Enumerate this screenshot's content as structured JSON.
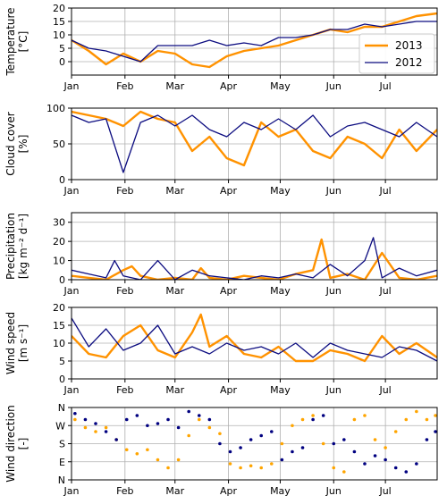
{
  "chart_data": [
    {
      "type": "line",
      "ylabel_lines": [
        "Temperature",
        "[°C]"
      ],
      "ylim": [
        -5,
        20
      ],
      "yticks": [
        0,
        5,
        10,
        15,
        20
      ],
      "xlim": [
        0,
        212
      ],
      "xticks": [
        0,
        31,
        60,
        91,
        121,
        152,
        182
      ],
      "xtick_labels": [
        "Jan",
        "Feb",
        "Mar",
        "Apr",
        "May",
        "Jun",
        "Jul"
      ],
      "grid": true,
      "legend": {
        "placement": "right",
        "entries": [
          "2013",
          "2012"
        ]
      },
      "series": [
        {
          "name": "2013",
          "color": "#ff9200",
          "x": [
            0,
            10,
            20,
            30,
            40,
            50,
            60,
            70,
            80,
            90,
            100,
            110,
            120,
            130,
            140,
            150,
            160,
            170,
            180,
            190,
            200,
            212
          ],
          "y": [
            8,
            4,
            -1,
            3,
            0,
            4,
            3,
            -1,
            -2,
            2,
            4,
            5,
            6,
            8,
            10,
            12,
            11,
            13,
            13,
            15,
            17,
            18
          ]
        },
        {
          "name": "2012",
          "color": "#0c0c80",
          "x": [
            0,
            10,
            20,
            30,
            40,
            50,
            60,
            70,
            80,
            90,
            100,
            110,
            120,
            130,
            140,
            150,
            160,
            170,
            180,
            190,
            200,
            212
          ],
          "y": [
            8,
            5,
            4,
            2,
            0,
            6,
            6,
            6,
            8,
            6,
            7,
            6,
            9,
            9,
            10,
            12,
            12,
            14,
            13,
            14,
            15,
            15
          ]
        }
      ]
    },
    {
      "type": "line",
      "ylabel_lines": [
        "Cloud cover",
        "[%]"
      ],
      "ylim": [
        0,
        100
      ],
      "yticks": [
        0,
        50,
        100
      ],
      "xlim": [
        0,
        212
      ],
      "xticks": [
        0,
        31,
        60,
        91,
        121,
        152,
        182
      ],
      "xtick_labels": [
        "Jan",
        "Feb",
        "Mar",
        "Apr",
        "May",
        "Jun",
        "Jul"
      ],
      "grid": true,
      "series": [
        {
          "name": "2013",
          "color": "#ff9200",
          "x": [
            0,
            10,
            20,
            30,
            40,
            50,
            60,
            70,
            80,
            90,
            100,
            110,
            120,
            130,
            140,
            150,
            160,
            170,
            180,
            190,
            200,
            212
          ],
          "y": [
            95,
            90,
            85,
            75,
            95,
            85,
            80,
            40,
            60,
            30,
            20,
            80,
            60,
            70,
            40,
            30,
            60,
            50,
            30,
            70,
            40,
            70
          ]
        },
        {
          "name": "2012",
          "color": "#0c0c80",
          "x": [
            0,
            10,
            20,
            30,
            40,
            50,
            60,
            70,
            80,
            90,
            100,
            110,
            120,
            130,
            140,
            150,
            160,
            170,
            180,
            190,
            200,
            212
          ],
          "y": [
            90,
            80,
            85,
            10,
            80,
            90,
            75,
            90,
            70,
            60,
            80,
            70,
            85,
            70,
            90,
            60,
            75,
            80,
            70,
            60,
            80,
            60
          ]
        }
      ]
    },
    {
      "type": "line",
      "ylabel_lines": [
        "Precipitation",
        "[kg m⁻² d⁻¹]"
      ],
      "ylim": [
        0,
        35
      ],
      "yticks": [
        0,
        10,
        20,
        30
      ],
      "xlim": [
        0,
        212
      ],
      "xticks": [
        0,
        31,
        60,
        91,
        121,
        152,
        182
      ],
      "xtick_labels": [
        "Jan",
        "Feb",
        "Mar",
        "Apr",
        "May",
        "Jun",
        "Jul"
      ],
      "grid": true,
      "series": [
        {
          "name": "2013",
          "color": "#ff9200",
          "x": [
            0,
            10,
            20,
            30,
            35,
            40,
            50,
            60,
            70,
            75,
            80,
            90,
            100,
            110,
            120,
            130,
            140,
            145,
            150,
            160,
            170,
            180,
            190,
            200,
            212
          ],
          "y": [
            2,
            1,
            0,
            5,
            7,
            2,
            0,
            1,
            0,
            6,
            1,
            0,
            2,
            1,
            0,
            3,
            5,
            21,
            1,
            3,
            0,
            14,
            1,
            0,
            2
          ]
        },
        {
          "name": "2012",
          "color": "#0c0c80",
          "x": [
            0,
            10,
            20,
            25,
            30,
            40,
            50,
            60,
            70,
            80,
            90,
            100,
            110,
            120,
            130,
            140,
            150,
            160,
            170,
            175,
            180,
            190,
            200,
            212
          ],
          "y": [
            5,
            3,
            1,
            10,
            2,
            0,
            10,
            0,
            5,
            2,
            1,
            0,
            2,
            1,
            3,
            1,
            8,
            2,
            10,
            22,
            1,
            6,
            2,
            5
          ]
        }
      ]
    },
    {
      "type": "line",
      "ylabel_lines": [
        "Wind speed",
        "[m s⁻¹]"
      ],
      "ylim": [
        0,
        20
      ],
      "yticks": [
        0,
        5,
        10,
        15,
        20
      ],
      "xlim": [
        0,
        212
      ],
      "xticks": [
        0,
        31,
        60,
        91,
        121,
        152,
        182
      ],
      "xtick_labels": [
        "Jan",
        "Feb",
        "Mar",
        "Apr",
        "May",
        "Jun",
        "Jul"
      ],
      "grid": true,
      "series": [
        {
          "name": "2013",
          "color": "#ff9200",
          "x": [
            0,
            10,
            20,
            30,
            40,
            50,
            60,
            70,
            75,
            80,
            90,
            100,
            110,
            120,
            130,
            140,
            150,
            160,
            170,
            180,
            190,
            200,
            212
          ],
          "y": [
            12,
            7,
            6,
            12,
            15,
            8,
            6,
            13,
            18,
            9,
            12,
            7,
            6,
            9,
            5,
            5,
            8,
            7,
            5,
            12,
            7,
            10,
            6
          ]
        },
        {
          "name": "2012",
          "color": "#0c0c80",
          "x": [
            0,
            10,
            20,
            30,
            40,
            50,
            60,
            70,
            80,
            90,
            100,
            110,
            120,
            130,
            140,
            150,
            160,
            170,
            180,
            190,
            200,
            212
          ],
          "y": [
            17,
            9,
            14,
            8,
            10,
            15,
            7,
            9,
            7,
            10,
            8,
            9,
            7,
            10,
            6,
            10,
            8,
            7,
            6,
            9,
            8,
            5
          ]
        }
      ]
    },
    {
      "type": "scatter",
      "ylabel_lines": [
        "Wind direction",
        "[-]"
      ],
      "ylim": [
        0,
        360
      ],
      "yticks": [
        0,
        90,
        180,
        270,
        360
      ],
      "ytick_labels": [
        "N",
        "E",
        "S",
        "W",
        "N"
      ],
      "xlim": [
        0,
        212
      ],
      "xticks": [
        0,
        31,
        60,
        91,
        121,
        152,
        182
      ],
      "xtick_labels": [
        "Jan",
        "Feb",
        "Mar",
        "Apr",
        "May",
        "Jun",
        "Jul"
      ],
      "grid": true,
      "series": [
        {
          "name": "2013",
          "color": "#ffa500",
          "x": [
            2,
            8,
            14,
            20,
            26,
            32,
            38,
            44,
            50,
            56,
            62,
            68,
            74,
            80,
            86,
            92,
            98,
            104,
            110,
            116,
            122,
            128,
            134,
            140,
            146,
            152,
            158,
            164,
            170,
            176,
            182,
            188,
            194,
            200,
            206,
            211
          ],
          "y": [
            300,
            260,
            240,
            260,
            200,
            150,
            130,
            150,
            100,
            60,
            100,
            220,
            300,
            260,
            230,
            80,
            60,
            70,
            60,
            80,
            180,
            270,
            300,
            320,
            180,
            60,
            40,
            300,
            320,
            200,
            160,
            240,
            300,
            340,
            300,
            320
          ]
        },
        {
          "name": "2012",
          "color": "#000080",
          "x": [
            2,
            8,
            14,
            20,
            26,
            32,
            38,
            44,
            50,
            56,
            62,
            68,
            74,
            80,
            86,
            92,
            98,
            104,
            110,
            116,
            122,
            128,
            134,
            140,
            146,
            152,
            158,
            164,
            170,
            176,
            182,
            188,
            194,
            200,
            206,
            211
          ],
          "y": [
            330,
            300,
            280,
            240,
            200,
            300,
            320,
            270,
            280,
            300,
            260,
            340,
            320,
            300,
            180,
            140,
            160,
            200,
            220,
            240,
            100,
            140,
            160,
            300,
            320,
            180,
            200,
            140,
            80,
            120,
            100,
            60,
            40,
            80,
            200,
            240
          ]
        }
      ]
    }
  ]
}
